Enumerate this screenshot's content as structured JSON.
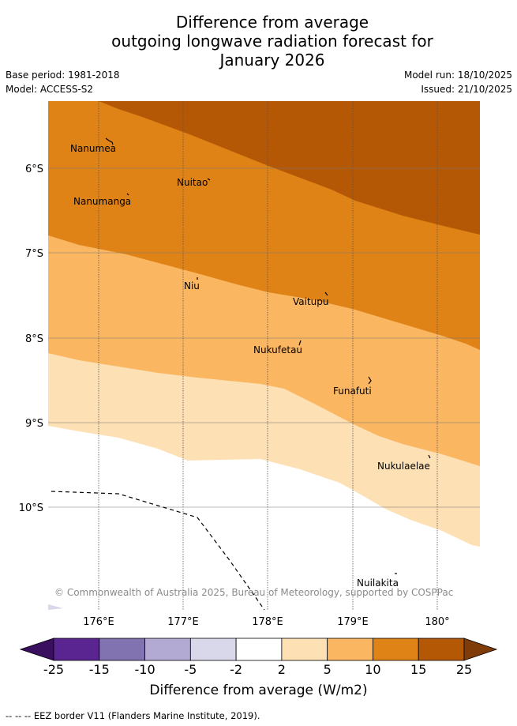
{
  "title_lines": [
    "Difference from average",
    "outgoing longwave radiation forecast for",
    "January 2026"
  ],
  "meta": {
    "base_period": "Base period: 1981-2018",
    "model": "Model: ACCESS-S2",
    "model_run": "Model run: 18/10/2025",
    "issued": "Issued: 21/10/2025"
  },
  "map": {
    "lat_ticks": [
      "6°S",
      "7°S",
      "8°S",
      "9°S",
      "10°S"
    ],
    "lon_ticks": [
      "176°E",
      "177°E",
      "178°E",
      "179°E",
      "180°"
    ],
    "place_labels": [
      "Nanumea",
      "Nuitao",
      "Nanumanga",
      "Niu",
      "Vaitupu",
      "Nukufetau",
      "Funafuti",
      "Nukulaelae",
      "Nuilakita"
    ],
    "copyright": "© Commonwealth of Australia 2025, Bureau of Meteorology, supported by COSPPac"
  },
  "colorbar": {
    "ticks": [
      "-25",
      "-15",
      "-10",
      "-5",
      "-2",
      "2",
      "5",
      "10",
      "15",
      "25"
    ],
    "colors": [
      "#3b0f5f",
      "#5a2590",
      "#8172b0",
      "#b3aad4",
      "#d8d8ea",
      "#ffffff",
      "#fde0b4",
      "#fbb661",
      "#e08317",
      "#b45806",
      "#7f3b08"
    ],
    "label": "Difference from average (W/m2)"
  },
  "footnote": "-- -- -- EEZ border V11 (Flanders Marine Institute, 2019)."
}
